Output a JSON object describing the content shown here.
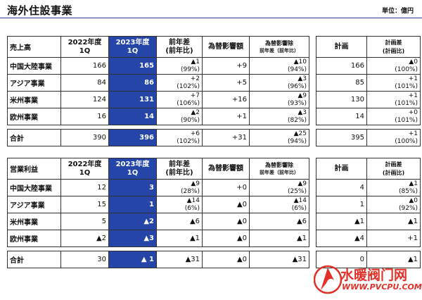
{
  "page": {
    "title": "海外住設事業",
    "unit": "単位：億円"
  },
  "sales": {
    "header": {
      "label": "売上高",
      "y2022": [
        "2022年度",
        "1Q"
      ],
      "y2023": [
        "2023年度",
        "1Q"
      ],
      "diff": [
        "前年差",
        "(前年比)"
      ],
      "fx": "為替影響額",
      "exfx": [
        "為替影響除",
        "前年差（前年比）"
      ],
      "plan": "計画",
      "plandiff": [
        "計画差",
        "(計画比)"
      ]
    },
    "rows": [
      {
        "name": "中国大陸事業",
        "v2022": "166",
        "v2023": "165",
        "diff": "▲1",
        "diffpct": "(99%)",
        "fx": "+9",
        "exfx": "▲10",
        "exfxpct": "(94%)",
        "plan": "166",
        "pd": "▲0",
        "pdpct": "(100%)"
      },
      {
        "name": "アジア事業",
        "v2022": "84",
        "v2023": "86",
        "diff": "+2",
        "diffpct": "(102%)",
        "fx": "+5",
        "exfx": "▲3",
        "exfxpct": "(96%)",
        "plan": "85",
        "pd": "+1",
        "pdpct": "(101%)"
      },
      {
        "name": "米州事業",
        "v2022": "124",
        "v2023": "131",
        "diff": "+7",
        "diffpct": "(106%)",
        "fx": "+16",
        "exfx": "▲9",
        "exfxpct": "(93%)",
        "plan": "130",
        "pd": "+1",
        "pdpct": "(101%)"
      },
      {
        "name": "欧州事業",
        "v2022": "16",
        "v2023": "14",
        "diff": "▲2",
        "diffpct": "(90%)",
        "fx": "+1",
        "exfx": "▲3",
        "exfxpct": "(82%)",
        "plan": "14",
        "pd": "+0",
        "pdpct": "(101%)"
      }
    ],
    "total": {
      "name": "合計",
      "v2022": "390",
      "v2023": "396",
      "diff": "+6",
      "diffpct": "(102%)",
      "fx": "+31",
      "exfx": "▲25",
      "exfxpct": "(94%)",
      "plan": "395",
      "pd": "+1",
      "pdpct": "(100%)"
    }
  },
  "profit": {
    "header": {
      "label": "営業利益",
      "y2022": [
        "2022年度",
        "1Q"
      ],
      "y2023": [
        "2023年度",
        "1Q"
      ],
      "diff": [
        "前年差",
        "(前年比)"
      ],
      "fx": "為替影響額",
      "exfx": [
        "為替影響除",
        "前年差（前年比）"
      ],
      "plan": "計画",
      "plandiff": [
        "計画差",
        "(計画比)"
      ]
    },
    "rows": [
      {
        "name": "中国大陸事業",
        "v2022": "12",
        "v2023": "3",
        "diff": "▲9",
        "diffpct": "(28%)",
        "fx": "+0",
        "exfx": "▲9",
        "exfxpct": "(25%)",
        "plan": "4",
        "pd": "▲1",
        "pdpct": "(85%)"
      },
      {
        "name": "アジア事業",
        "v2022": "15",
        "v2023": "1",
        "diff": "▲14",
        "diffpct": "(6%)",
        "fx": "▲0",
        "exfx": "▲14",
        "exfxpct": "(6%)",
        "plan": "1",
        "pd": "▲0",
        "pdpct": "(92%)"
      },
      {
        "name": "米州事業",
        "v2022": "5",
        "v2023": "▲2",
        "diff": "▲6",
        "diffpct": "",
        "fx": "▲0",
        "exfx": "▲6",
        "exfxpct": "",
        "plan": "▲1",
        "pd": "▲1",
        "pdpct": ""
      },
      {
        "name": "欧州事業",
        "v2022": "▲2",
        "v2023": "▲3",
        "diff": "▲1",
        "diffpct": "",
        "fx": "▲0",
        "exfx": "▲1",
        "exfxpct": "",
        "plan": "▲4",
        "pd": "+1",
        "pdpct": ""
      }
    ],
    "total": {
      "name": "合計",
      "v2022": "30",
      "v2023": "▲ 1",
      "diff": "▲31",
      "diffpct": "",
      "fx": "▲0",
      "exfx": "▲31",
      "exfxpct": "",
      "plan": "0",
      "pd": "▲1",
      "pdpct": ""
    }
  },
  "watermark": {
    "cn": "水暖阀门网",
    "en": "WWW.PVCPU.COM"
  }
}
